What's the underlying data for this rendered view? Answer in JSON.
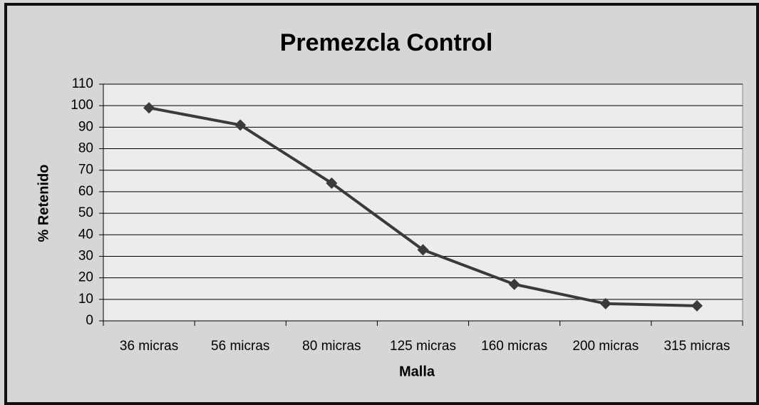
{
  "chart_data": {
    "type": "line",
    "title": "Premezcla Control",
    "x_label": "Malla",
    "y_label": "% Retenido",
    "categories": [
      "36 micras",
      "56 micras",
      "80 micras",
      "125 micras",
      "160 micras",
      "200 micras",
      "315 micras"
    ],
    "values": [
      99,
      91,
      64,
      33,
      17,
      8,
      7
    ],
    "color": "#3a3a3a",
    "ylim": [
      0,
      110
    ],
    "yticks": [
      0,
      10,
      20,
      30,
      40,
      50,
      60,
      70,
      80,
      90,
      100,
      110
    ],
    "grid": true
  }
}
